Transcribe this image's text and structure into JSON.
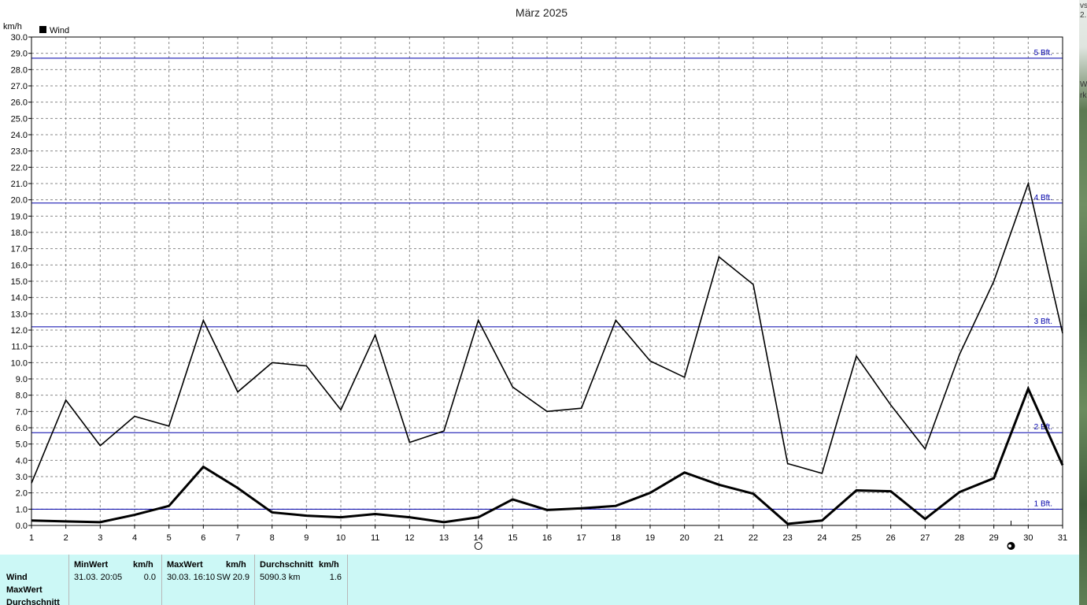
{
  "chart_data": {
    "type": "line",
    "title": "März 2025",
    "ylabel": "km/h",
    "xlabel": "",
    "ylim": [
      0,
      30
    ],
    "y_tick_step": 1.0,
    "x": [
      1,
      2,
      3,
      4,
      5,
      6,
      7,
      8,
      9,
      10,
      11,
      12,
      13,
      14,
      15,
      16,
      17,
      18,
      19,
      20,
      21,
      22,
      23,
      24,
      25,
      26,
      27,
      28,
      29,
      30,
      31
    ],
    "grid": true,
    "legend": "top-left",
    "series": [
      {
        "name": "Wind",
        "role": "max",
        "color": "#000000",
        "values": [
          2.6,
          7.7,
          4.9,
          6.7,
          6.1,
          12.6,
          8.2,
          10.0,
          9.8,
          7.1,
          11.7,
          5.1,
          5.8,
          12.6,
          8.5,
          7.0,
          7.2,
          12.6,
          10.1,
          9.1,
          16.5,
          14.8,
          3.8,
          3.2,
          10.4,
          7.4,
          4.7,
          10.5,
          15.0,
          21.0,
          11.8
        ]
      },
      {
        "name": "",
        "role": "average",
        "color": "#000000",
        "values": [
          0.3,
          0.25,
          0.2,
          0.65,
          1.2,
          3.6,
          2.3,
          0.8,
          0.6,
          0.5,
          0.7,
          0.5,
          0.2,
          0.5,
          1.6,
          0.95,
          1.05,
          1.2,
          2.0,
          3.25,
          2.5,
          1.95,
          0.1,
          0.3,
          2.15,
          2.1,
          0.4,
          2.05,
          2.9,
          8.4,
          3.7
        ]
      }
    ],
    "beaufort_lines": [
      {
        "label": "1 Bft.",
        "value": 1.0
      },
      {
        "label": "2 Bft.",
        "value": 5.7
      },
      {
        "label": "3 Bft.",
        "value": 12.2
      },
      {
        "label": "4 Bft.",
        "value": 19.8
      },
      {
        "label": "5 Bft.",
        "value": 28.7
      }
    ],
    "beaufort_color": "#0000aa",
    "moon_phases": [
      {
        "day": 14,
        "phase": "full",
        "icon": "full-moon-icon"
      },
      {
        "day": 29.5,
        "phase": "new",
        "icon": "new-moon-icon"
      }
    ]
  },
  "stats": {
    "row_labels": [
      "Wind",
      "MaxWert",
      "Durchschnitt"
    ],
    "min": {
      "header": "MinWert",
      "unit": "km/h",
      "datetime": "31.03.  20:05",
      "value": "0.0"
    },
    "max": {
      "header": "MaxWert",
      "unit": "km/h",
      "datetime": "30.03.  16:10",
      "direction": "SW",
      "value": "20.9"
    },
    "avg": {
      "header": "Durchschnitt",
      "unit": "km/h",
      "distance": "5090.3 km",
      "value": "1.6"
    }
  },
  "side_strip": {
    "lines": [
      "vs",
      "2.",
      "W",
      "rk"
    ]
  }
}
